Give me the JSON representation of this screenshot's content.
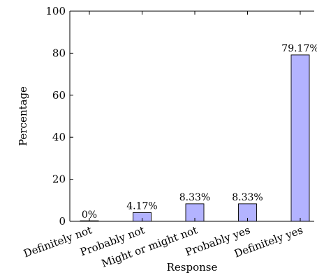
{
  "chart_data": {
    "type": "bar",
    "categories": [
      "Definitely not",
      "Probably not",
      "Might or might not",
      "Probably yes",
      "Definitely yes"
    ],
    "values": [
      0,
      4.17,
      8.33,
      8.33,
      79.17
    ],
    "data_labels": [
      "0%",
      "4.17%",
      "8.33%",
      "8.33%",
      "79.17%"
    ],
    "xlabel": "Response",
    "ylabel": "Percentage",
    "ylim": [
      0,
      100
    ],
    "yticks": [
      0,
      20,
      40,
      60,
      80,
      100
    ],
    "bar_color": "#b3b3ff",
    "bar_edge_color": "#000000",
    "grid": false
  }
}
